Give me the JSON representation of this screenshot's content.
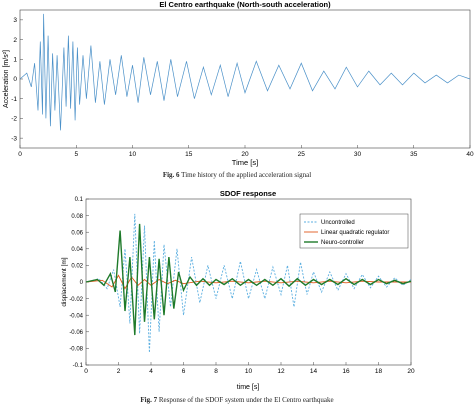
{
  "figure1": {
    "caption_label": "Fig. 6",
    "caption_text": "Time history of the applied acceleration signal",
    "chart_data": {
      "type": "line",
      "title": "El Centro earthquake (North-south acceleration)",
      "xlabel": "Time [s]",
      "ylabel": "Acceleration [m/s²]",
      "xlim": [
        0,
        40
      ],
      "ylim": [
        -3.5,
        3.5
      ],
      "xticks": [
        "0",
        "5",
        "10",
        "15",
        "20",
        "25",
        "30",
        "35",
        "40"
      ],
      "yticks": [
        "-3",
        "-2",
        "-1",
        "0",
        "1",
        "2",
        "3"
      ],
      "grid": false,
      "color": "#4a90c8",
      "series": [
        {
          "x": [
            0,
            0.6,
            1.0,
            1.3,
            1.6,
            1.8,
            2.0,
            2.1,
            2.3,
            2.5,
            2.7,
            2.9,
            3.1,
            3.3,
            3.6,
            3.9,
            4.1,
            4.3,
            4.5,
            4.7,
            4.9,
            5.1,
            5.3,
            5.6,
            5.9,
            6.3,
            6.7,
            7.1,
            7.5,
            8.0,
            8.5,
            9.0,
            9.5,
            10.0,
            10.5,
            11.0,
            11.6,
            12.2,
            12.8,
            13.4,
            14.0,
            14.8,
            15.5,
            16.3,
            17.0,
            17.8,
            18.5,
            19.3,
            20.0,
            21,
            22,
            23,
            24,
            25,
            26,
            27,
            28,
            29,
            30,
            31,
            32,
            33,
            34,
            35,
            36,
            37,
            38,
            39,
            40
          ],
          "y": [
            0,
            0.3,
            -0.4,
            0.8,
            -1.6,
            1.9,
            -1.8,
            3.3,
            -2.0,
            2.2,
            -2.4,
            1.3,
            -1.6,
            1.2,
            -2.6,
            1.6,
            -1.4,
            2.2,
            -1.5,
            1.9,
            -2.1,
            1.6,
            -1.3,
            1.2,
            -1.0,
            1.7,
            -1.2,
            0.9,
            -1.3,
            1.0,
            -0.8,
            1.2,
            -0.9,
            0.7,
            -1.2,
            1.1,
            -0.8,
            0.9,
            -1.1,
            1.0,
            -0.9,
            0.9,
            -1.0,
            0.6,
            -0.8,
            0.7,
            -0.9,
            0.8,
            -0.7,
            0.9,
            -0.6,
            0.7,
            -0.5,
            0.8,
            -0.6,
            0.4,
            -0.5,
            0.6,
            -0.4,
            0.4,
            -0.3,
            0.3,
            -0.3,
            0.3,
            -0.2,
            0.2,
            -0.2,
            0.2,
            0
          ]
        }
      ]
    }
  },
  "figure2": {
    "caption_label": "Fig. 7",
    "caption_text": "Response of the SDOF system under the El Centro earthquake",
    "chart_data": {
      "type": "line",
      "title": "SDOF response",
      "xlabel": "time [s]",
      "ylabel": "displacement [m]",
      "xlim": [
        0,
        20
      ],
      "ylim": [
        -0.1,
        0.1
      ],
      "xticks": [
        "0",
        "2",
        "4",
        "6",
        "8",
        "10",
        "12",
        "14",
        "16",
        "18",
        "20"
      ],
      "yticks": [
        "-0.1",
        "-0.08",
        "-0.06",
        "-0.04",
        "-0.02",
        "0",
        "0.02",
        "0.04",
        "0.06",
        "0.08",
        "0.1"
      ],
      "grid": false,
      "legend_position": "top-right",
      "series": [
        {
          "name": "Uncontrolled",
          "color": "#5aaee0",
          "dash": true,
          "x": [
            0,
            0.8,
            1.3,
            1.7,
            2.1,
            2.4,
            2.7,
            3.0,
            3.3,
            3.6,
            3.9,
            4.2,
            4.5,
            4.8,
            5.2,
            5.6,
            6.0,
            6.5,
            7.0,
            7.5,
            8.0,
            8.5,
            9.0,
            9.5,
            10.0,
            10.5,
            11.0,
            11.5,
            12.0,
            12.4,
            12.8,
            13.2,
            13.6,
            14.0,
            14.5,
            15.0,
            15.5,
            16.0,
            16.5,
            17.0,
            17.5,
            18.0,
            18.5,
            19.0,
            19.5,
            20.0
          ],
          "y": [
            0,
            0.004,
            -0.008,
            0.015,
            -0.03,
            0.04,
            -0.05,
            0.082,
            -0.062,
            0.068,
            -0.085,
            0.05,
            -0.06,
            0.045,
            -0.03,
            0.04,
            -0.04,
            0.03,
            -0.025,
            0.02,
            -0.02,
            0.02,
            -0.02,
            0.025,
            -0.02,
            0.015,
            -0.02,
            0.018,
            -0.015,
            0.02,
            -0.03,
            0.024,
            -0.015,
            0.012,
            -0.012,
            0.012,
            -0.01,
            0.01,
            -0.008,
            0.009,
            -0.007,
            0.007,
            -0.006,
            0.005,
            -0.004,
            0.003
          ]
        },
        {
          "name": "Linear quadratic regulator",
          "color": "#e05a1c",
          "dash": false,
          "x": [
            0,
            1,
            1.6,
            2.0,
            2.4,
            2.8,
            3.2,
            3.6,
            4.0,
            4.5,
            5.0,
            5.5,
            6.0,
            7,
            8,
            9,
            10,
            11,
            12,
            13,
            14,
            15,
            16,
            17,
            18,
            19,
            20
          ],
          "y": [
            0,
            0.002,
            -0.006,
            0.008,
            -0.008,
            0.006,
            -0.004,
            0.003,
            -0.004,
            0.003,
            -0.002,
            0.002,
            -0.002,
            0.001,
            -0.001,
            0.001,
            -0.001,
            0.001,
            -0.001,
            0.001,
            -0.001,
            0.001,
            -0.001,
            0.001,
            0,
            0,
            0
          ]
        },
        {
          "name": "Neuro-controller",
          "color": "#1e7a2a",
          "dash": false,
          "x": [
            0,
            0.7,
            1.1,
            1.5,
            1.8,
            2.1,
            2.4,
            2.7,
            3.0,
            3.3,
            3.6,
            3.9,
            4.2,
            4.5,
            4.8,
            5.1,
            5.4,
            5.7,
            6.0,
            6.4,
            6.8,
            7.2,
            7.6,
            8.0,
            8.5,
            9.0,
            9.5,
            10.0,
            10.5,
            11.0,
            11.5,
            12.0,
            12.5,
            13.0,
            13.5,
            14.0,
            14.5,
            15.0,
            15.5,
            16.0,
            16.5,
            17.0,
            17.5,
            18.0,
            18.5,
            19.0,
            19.5,
            20.0
          ],
          "y": [
            0,
            0.003,
            -0.004,
            0.01,
            -0.012,
            0.062,
            -0.035,
            0.03,
            -0.064,
            0.07,
            -0.048,
            0.03,
            -0.045,
            0.028,
            -0.04,
            0.03,
            -0.032,
            0.012,
            -0.01,
            0.006,
            -0.004,
            0.004,
            -0.004,
            0.003,
            -0.003,
            0.004,
            -0.004,
            0.003,
            -0.004,
            0.003,
            -0.004,
            0.004,
            -0.005,
            0.004,
            -0.004,
            0.003,
            -0.003,
            0.003,
            -0.003,
            0.004,
            -0.003,
            0.003,
            -0.003,
            0.003,
            -0.002,
            0.002,
            -0.002,
            0.001
          ]
        }
      ]
    }
  }
}
